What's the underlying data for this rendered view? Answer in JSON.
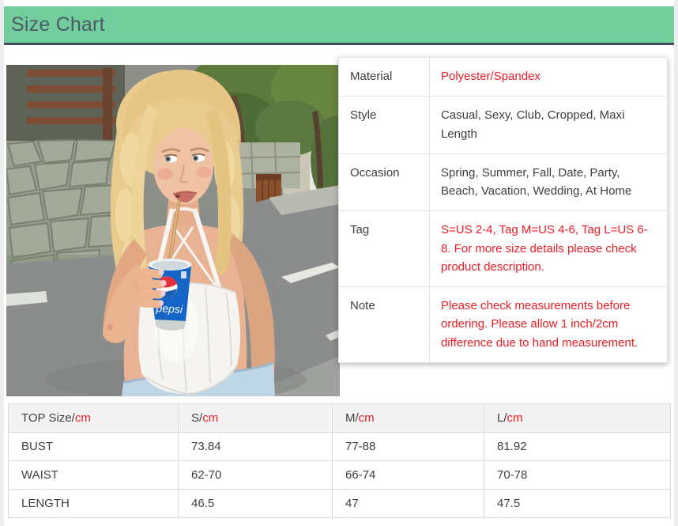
{
  "header": {
    "title": "Size Chart"
  },
  "product_image": {
    "description": "Blonde model in white satin corset crop top drinking from a blue Pepsi cup with a straw on a street",
    "cup_brand_text": "pepsi"
  },
  "details_table": {
    "rows": [
      {
        "label": "Material",
        "value": "Polyester/Spandex",
        "highlight": true
      },
      {
        "label": "Style",
        "value": "Casual, Sexy, Club, Cropped, Maxi Length",
        "highlight": false
      },
      {
        "label": "Occasion",
        "value": "Spring, Summer, Fall, Date, Party, Beach, Vacation, Wedding, At Home",
        "highlight": false
      },
      {
        "label": "Tag",
        "value": "S=US 2-4, Tag M=US 4-6, Tag L=US 6-8. For more size details please check product description.",
        "highlight": true
      },
      {
        "label": "Note",
        "value": "Please check measurements before ordering. Please allow 1 inch/2cm difference due to hand measurement.",
        "highlight": true
      }
    ]
  },
  "size_table": {
    "headers": [
      {
        "label": "TOP Size/",
        "unit": "cm"
      },
      {
        "label": "S/",
        "unit": "cm"
      },
      {
        "label": "M/",
        "unit": "cm"
      },
      {
        "label": "L/",
        "unit": "cm"
      }
    ],
    "rows": [
      {
        "name": "BUST",
        "s": "73.84",
        "m": "77-88",
        "l": "81.92"
      },
      {
        "name": "WAIST",
        "s": "62-70",
        "m": "66-74",
        "l": "70-78"
      },
      {
        "name": "LENGTH",
        "s": "46.5",
        "m": "47",
        "l": "47.5"
      }
    ]
  },
  "colors": {
    "accent_green": "#72ce9d",
    "title_slate": "#4c5a68",
    "highlight_red": "#ed1c24"
  }
}
